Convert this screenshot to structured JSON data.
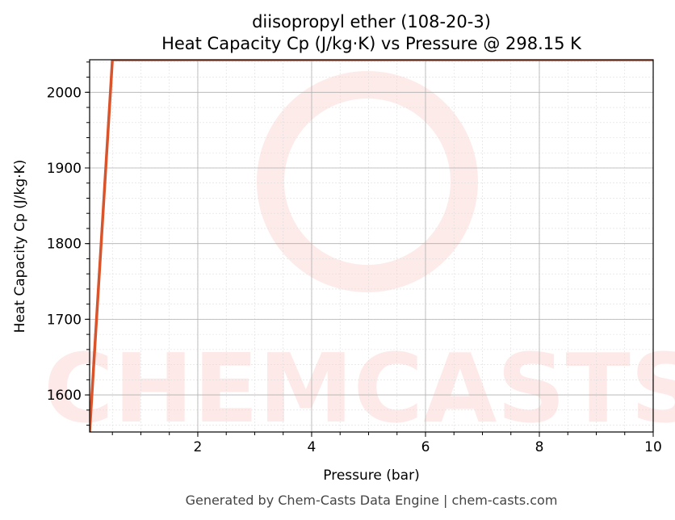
{
  "chart_data": {
    "type": "line",
    "title": "diisopropyl ether (108-20-3)",
    "subtitle": "Heat Capacity Cp (J/kg·K) vs Pressure @ 298.15 K",
    "x_label": "Pressure (bar)",
    "y_label": "Heat Capacity Cp (J/kg·K)",
    "x": [
      0.1,
      0.5,
      10
    ],
    "series": [
      {
        "name": "Cp",
        "color": "#d9542b",
        "values": [
          1551,
          2043,
          2043
        ]
      }
    ],
    "xlim": [
      0.1,
      10
    ],
    "xticks": [
      2,
      4,
      6,
      8,
      10
    ],
    "ylim": [
      1551,
      2043
    ],
    "yticks": [
      1600,
      1700,
      1800,
      1900,
      2000
    ],
    "grid": true,
    "minor_grid": true,
    "watermark": "CHEMCASTS",
    "footer": "Generated by Chem-Casts Data Engine | chem-casts.com"
  }
}
